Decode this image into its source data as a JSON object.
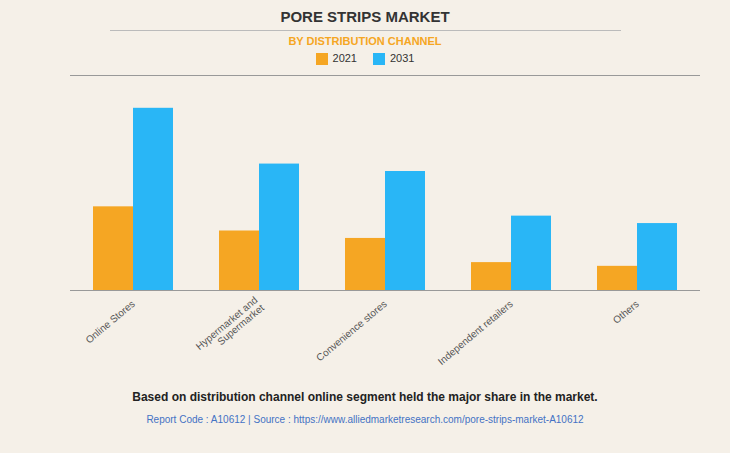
{
  "chart_data": {
    "type": "bar",
    "title": "PORE STRIPS MARKET",
    "subtitle": "BY DISTRIBUTION CHANNEL",
    "categories": [
      "Online Stores",
      "Hypermarket and\nSupermarket",
      "Convenience stores",
      "Independent retailers",
      "Others"
    ],
    "series": [
      {
        "name": "2021",
        "color": "#F5A623",
        "values": [
          4.5,
          3.2,
          2.8,
          1.5,
          1.3
        ]
      },
      {
        "name": "2031",
        "color": "#29B6F6",
        "values": [
          9.8,
          6.8,
          6.4,
          4.0,
          3.6
        ]
      }
    ],
    "ylim": [
      0,
      11.564
    ],
    "yticks": [],
    "grid": false,
    "tick_labels": "x",
    "legend": "top",
    "annotations": [
      "Based on distribution channel online segment held the major share in the market.",
      "Report Code : A10612  |  Source : https://www.alliedmarketresearch.com/pore-strips-market-A10612"
    ]
  }
}
